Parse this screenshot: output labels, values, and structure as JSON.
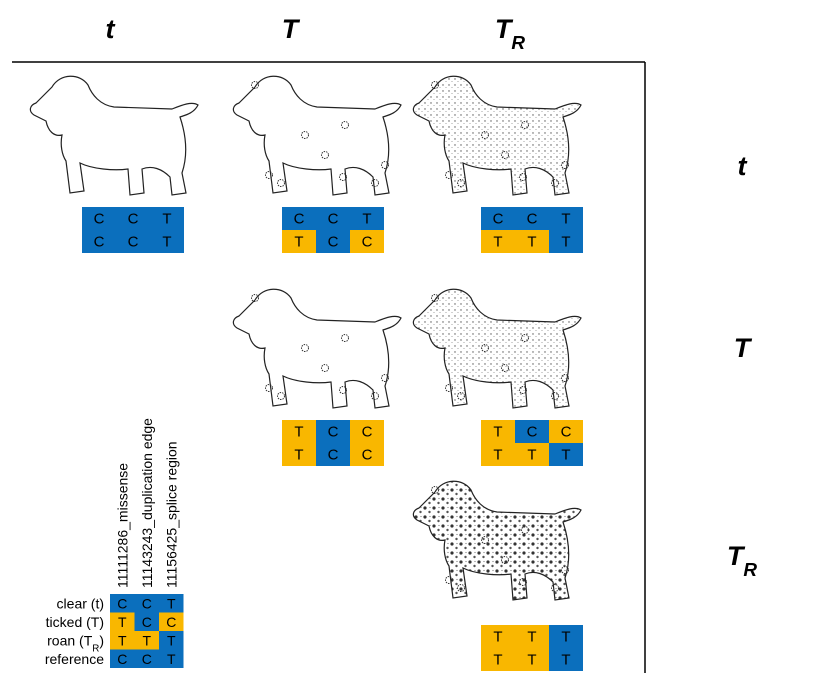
{
  "column_headers": [
    {
      "text": "t"
    },
    {
      "text": "T"
    },
    {
      "text": "T",
      "subscript": "R"
    }
  ],
  "row_headers": [
    {
      "text": "t"
    },
    {
      "text": "T"
    },
    {
      "text": "T",
      "subscript": "R"
    }
  ],
  "genotype_rows": [
    {
      "cells": [
        {
          "alleles": [
            [
              "C",
              "C",
              "T"
            ],
            [
              "C",
              "C",
              "T"
            ]
          ]
        },
        {
          "alleles": [
            [
              "C",
              "C",
              "T"
            ],
            [
              "T",
              "C",
              "C"
            ]
          ]
        },
        {
          "alleles": [
            [
              "C",
              "C",
              "T"
            ],
            [
              "T",
              "T",
              "T"
            ]
          ]
        }
      ]
    },
    {
      "cells": [
        {
          "alleles": [
            [
              "T",
              "C",
              "C"
            ],
            [
              "T",
              "C",
              "C"
            ]
          ]
        },
        {
          "alleles": [
            [
              "T",
              "C",
              "C"
            ],
            [
              "T",
              "T",
              "T"
            ]
          ]
        }
      ]
    },
    {
      "cells": [
        {
          "alleles": [
            [
              "T",
              "T",
              "T"
            ],
            [
              "T",
              "T",
              "T"
            ]
          ]
        }
      ]
    }
  ],
  "legend": {
    "markers": [
      "11111286_missense",
      "11143243_duplication edge",
      "11156425_splice region"
    ],
    "haplotypes": [
      {
        "label": {
          "text": "clear (t)"
        },
        "alleles": [
          "C",
          "C",
          "T"
        ]
      },
      {
        "label": {
          "text": "ticked (T)"
        },
        "alleles": [
          "T",
          "C",
          "C"
        ]
      },
      {
        "label": {
          "text": "roan (T",
          "subscript": "R",
          "suffix": ")"
        },
        "alleles": [
          "T",
          "T",
          "T"
        ]
      },
      {
        "label": {
          "text": "reference"
        },
        "alleles": [
          "C",
          "C",
          "T"
        ]
      }
    ]
  },
  "colors": {
    "reference": "#0b6fbd",
    "alternate": "#f9b700"
  }
}
